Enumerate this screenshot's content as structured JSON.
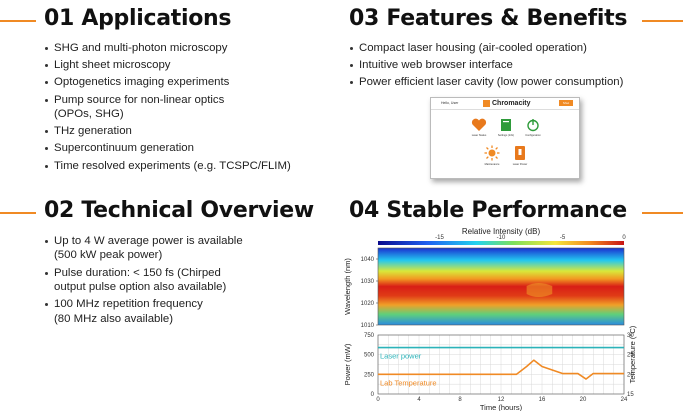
{
  "sections": {
    "applications": {
      "title": "01 Applications",
      "items": [
        "SHG and multi-photon microscopy",
        "Light sheet microscopy",
        "Optogenetics imaging experiments",
        "Pump source for non-linear optics",
        "(OPOs, SHG)",
        "THz generation",
        "Supercontinuum generation",
        "Time resolved experiments (e.g. TCSPC/FLIM)"
      ]
    },
    "features": {
      "title": "03 Features & Benefits",
      "items": [
        "Compact laser housing (air-cooled operation)",
        "Intuitive web browser interface",
        "Power efficient laser cavity (low power consumption)"
      ]
    },
    "technical": {
      "title": "02 Technical Overview",
      "items": [
        "Up to 4 W average power is available",
        "(500 kW peak power)",
        "Pulse duration: < 150 fs (Chirped",
        "output pulse option also available)",
        "100 MHz repetition frequency",
        "(80 MHz also available)"
      ]
    },
    "performance": {
      "title": "04 Stable Performance"
    }
  },
  "ui_mockup": {
    "user_label": "Hello, User",
    "brand": "Chromacity",
    "button_label": "Shut down",
    "tiles": [
      {
        "label": "Laser Status",
        "icon": "heart-icon",
        "color": "#e8791c"
      },
      {
        "label": "Settings (Info)",
        "icon": "book-icon",
        "color": "#2e9b3a"
      },
      {
        "label": "Configuration",
        "icon": "power-icon",
        "color": "#2e9b3a"
      },
      {
        "label": "Maintenance",
        "icon": "sun-icon",
        "color": "#f08a24"
      },
      {
        "label": "Laser Power",
        "icon": "lamp-icon",
        "color": "#e8791c"
      }
    ]
  },
  "chart_data": [
    {
      "type": "heatmap",
      "colorbar_label": "Relative Intensity (dB)",
      "colorbar_ticks": [
        "-15",
        "-10",
        "-5",
        "0"
      ],
      "colorbar_range": [
        -20,
        0
      ],
      "ylabel": "Wavelength (nm)",
      "yticks": [
        "1040",
        "1030",
        "1020",
        "1010"
      ],
      "ylim": [
        1010,
        1045
      ],
      "x_range": [
        0,
        24
      ],
      "center_wavelength": 1030
    },
    {
      "type": "line",
      "xlabel": "Time (hours)",
      "xticks": [
        "0",
        "4",
        "8",
        "12",
        "16",
        "20",
        "24"
      ],
      "xlim": [
        0,
        24
      ],
      "ylabel_left": "Power (mW)",
      "yticks_left": [
        "0",
        "250",
        "500",
        "750"
      ],
      "ylim_left": [
        0,
        750
      ],
      "ylabel_right": "Temperature (°C)",
      "yticks_right": [
        "15",
        "20",
        "25",
        "30"
      ],
      "ylim_right": [
        15,
        30
      ],
      "grid": true,
      "series": [
        {
          "name": "Laser power",
          "axis": "left",
          "color": "#2bb3b9",
          "x": [
            0,
            24
          ],
          "y": [
            590,
            590
          ]
        },
        {
          "name": "Lab Temperature",
          "axis": "right",
          "color": "#f08a24",
          "x": [
            0,
            13.5,
            14.5,
            15.2,
            16,
            18,
            19.5,
            20.3,
            21,
            24
          ],
          "y": [
            20,
            20,
            22,
            23.6,
            22,
            20.2,
            20.2,
            18.8,
            20.2,
            20.2
          ]
        }
      ]
    }
  ]
}
